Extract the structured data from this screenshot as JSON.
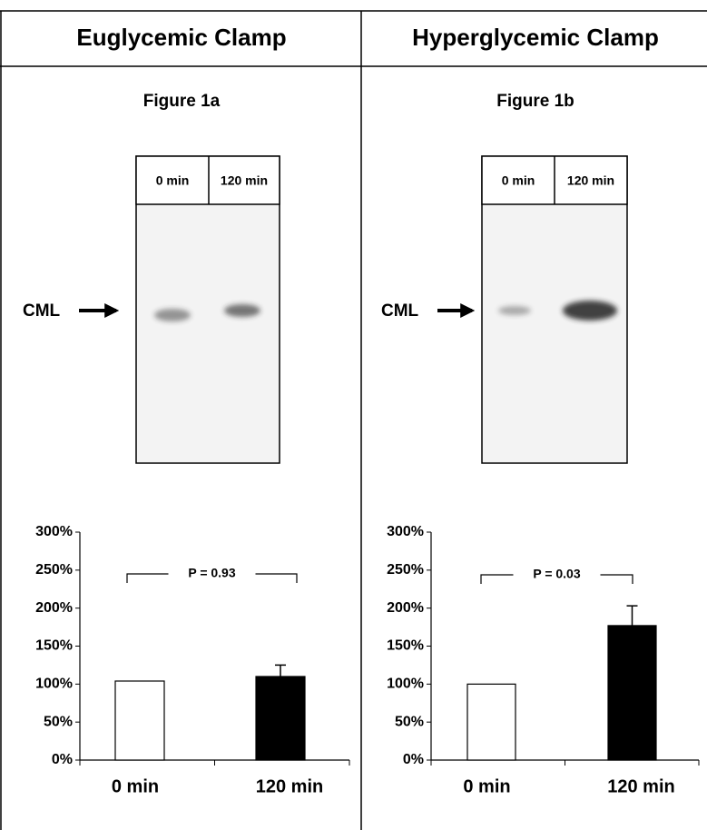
{
  "chart_data": [
    {
      "type": "bar",
      "header": "Euglycemic Clamp",
      "title": "Figure 1a",
      "blot": {
        "lanes": [
          "0 min",
          "120 min"
        ],
        "marker": "CML"
      },
      "categories": [
        "0 min",
        "120 min"
      ],
      "values": [
        104,
        110
      ],
      "errors": [
        0,
        15
      ],
      "colors": [
        "#ffffff",
        "#000000"
      ],
      "annotation": "P = 0.93",
      "ylim": [
        0,
        300
      ],
      "yticks": [
        {
          "value": 0,
          "label": "0%"
        },
        {
          "value": 50,
          "label": "50%"
        },
        {
          "value": 100,
          "label": "100%"
        },
        {
          "value": 150,
          "label": "150%"
        },
        {
          "value": 200,
          "label": "200%"
        },
        {
          "value": 250,
          "label": "250%"
        },
        {
          "value": 300,
          "label": "300%"
        }
      ]
    },
    {
      "type": "bar",
      "header": "Hyperglycemic Clamp",
      "title": "Figure 1b",
      "blot": {
        "lanes": [
          "0 min",
          "120 min"
        ],
        "marker": "CML"
      },
      "categories": [
        "0 min",
        "120 min"
      ],
      "values": [
        100,
        177
      ],
      "errors": [
        0,
        26
      ],
      "colors": [
        "#ffffff",
        "#000000"
      ],
      "annotation": "P = 0.03",
      "ylim": [
        0,
        300
      ],
      "yticks": [
        {
          "value": 0,
          "label": "0%"
        },
        {
          "value": 50,
          "label": "50%"
        },
        {
          "value": 100,
          "label": "100%"
        },
        {
          "value": 150,
          "label": "150%"
        },
        {
          "value": 200,
          "label": "200%"
        },
        {
          "value": 250,
          "label": "250%"
        },
        {
          "value": 300,
          "label": "300%"
        }
      ]
    }
  ]
}
